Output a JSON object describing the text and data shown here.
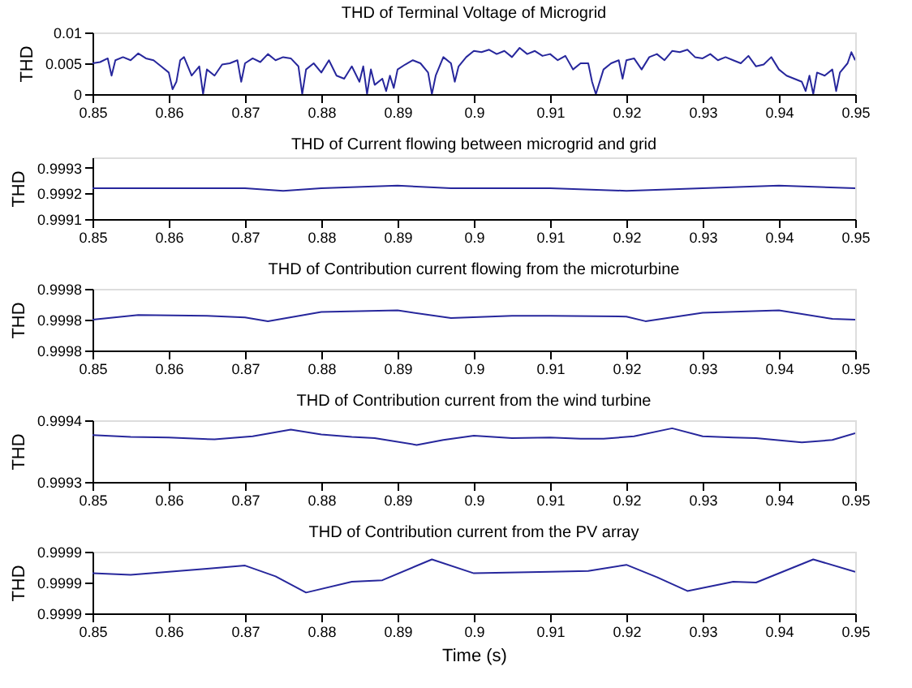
{
  "chart_data": [
    {
      "type": "line",
      "title": "THD of Terminal Voltage of Microgrid",
      "ylabel": "THD",
      "color": "#27279c",
      "xlim": [
        0.85,
        0.95
      ],
      "xticks": [
        0.85,
        0.86,
        0.87,
        0.88,
        0.89,
        0.9,
        0.91,
        0.92,
        0.93,
        0.94,
        0.95
      ],
      "ylim": [
        0,
        0.01
      ],
      "yticks": [
        0,
        0.005,
        0.01
      ],
      "x": [
        0.85,
        0.851,
        0.852,
        0.8525,
        0.853,
        0.854,
        0.855,
        0.856,
        0.857,
        0.858,
        0.859,
        0.86,
        0.8605,
        0.861,
        0.8615,
        0.862,
        0.863,
        0.864,
        0.8645,
        0.865,
        0.866,
        0.867,
        0.868,
        0.869,
        0.8695,
        0.87,
        0.871,
        0.872,
        0.873,
        0.874,
        0.875,
        0.876,
        0.877,
        0.8775,
        0.878,
        0.879,
        0.88,
        0.881,
        0.882,
        0.883,
        0.884,
        0.885,
        0.8855,
        0.886,
        0.8865,
        0.887,
        0.888,
        0.8885,
        0.889,
        0.8895,
        0.89,
        0.891,
        0.892,
        0.893,
        0.894,
        0.8945,
        0.895,
        0.896,
        0.897,
        0.8975,
        0.898,
        0.899,
        0.9,
        0.901,
        0.902,
        0.903,
        0.904,
        0.905,
        0.906,
        0.907,
        0.908,
        0.909,
        0.91,
        0.911,
        0.912,
        0.913,
        0.914,
        0.915,
        0.9155,
        0.916,
        0.917,
        0.918,
        0.919,
        0.9195,
        0.92,
        0.921,
        0.922,
        0.923,
        0.924,
        0.925,
        0.926,
        0.927,
        0.928,
        0.929,
        0.93,
        0.931,
        0.932,
        0.933,
        0.934,
        0.935,
        0.936,
        0.937,
        0.938,
        0.939,
        0.94,
        0.941,
        0.942,
        0.943,
        0.9435,
        0.944,
        0.9445,
        0.945,
        0.946,
        0.947,
        0.9475,
        0.948,
        0.949,
        0.9495,
        0.95
      ],
      "values": [
        0.005,
        0.0052,
        0.0058,
        0.003,
        0.0055,
        0.006,
        0.0055,
        0.0066,
        0.0058,
        0.0055,
        0.0045,
        0.0035,
        0.0008,
        0.002,
        0.0055,
        0.006,
        0.003,
        0.0045,
        0.0,
        0.004,
        0.003,
        0.0048,
        0.005,
        0.0055,
        0.002,
        0.005,
        0.0058,
        0.0052,
        0.0065,
        0.0055,
        0.006,
        0.0058,
        0.0045,
        0.0,
        0.004,
        0.005,
        0.0035,
        0.0055,
        0.003,
        0.0025,
        0.0045,
        0.002,
        0.0045,
        0.0,
        0.004,
        0.0015,
        0.0025,
        0.0005,
        0.003,
        0.001,
        0.004,
        0.0048,
        0.0055,
        0.005,
        0.0035,
        0.0,
        0.003,
        0.006,
        0.005,
        0.002,
        0.0045,
        0.006,
        0.007,
        0.0068,
        0.0072,
        0.0065,
        0.007,
        0.006,
        0.0075,
        0.0065,
        0.007,
        0.0062,
        0.0065,
        0.0055,
        0.0062,
        0.004,
        0.005,
        0.005,
        0.002,
        0.0,
        0.004,
        0.005,
        0.0055,
        0.0025,
        0.0055,
        0.0058,
        0.004,
        0.006,
        0.0065,
        0.0055,
        0.007,
        0.0068,
        0.0072,
        0.006,
        0.0058,
        0.0065,
        0.0055,
        0.006,
        0.0055,
        0.005,
        0.0062,
        0.0045,
        0.0048,
        0.006,
        0.004,
        0.003,
        0.0025,
        0.002,
        0.0005,
        0.003,
        0.0,
        0.0035,
        0.003,
        0.004,
        0.0005,
        0.0035,
        0.005,
        0.0068,
        0.0055
      ]
    },
    {
      "type": "line",
      "title": "THD of Current flowing between microgrid and grid",
      "ylabel": "THD",
      "color": "#27279c",
      "xlim": [
        0.85,
        0.95
      ],
      "xticks": [
        0.85,
        0.86,
        0.87,
        0.88,
        0.89,
        0.9,
        0.91,
        0.92,
        0.93,
        0.94,
        0.95
      ],
      "ylim": [
        0.9991,
        0.99934
      ],
      "yticks": [
        0.9991,
        0.9992,
        0.9993
      ],
      "x": [
        0.85,
        0.86,
        0.87,
        0.875,
        0.88,
        0.89,
        0.897,
        0.905,
        0.91,
        0.92,
        0.93,
        0.94,
        0.95
      ],
      "values": [
        0.99922,
        0.99922,
        0.99922,
        0.99921,
        0.99922,
        0.99923,
        0.99922,
        0.99922,
        0.99922,
        0.99921,
        0.99922,
        0.99923,
        0.99922
      ]
    },
    {
      "type": "line",
      "title": "THD of Contribution current flowing from the microturbine",
      "ylabel": "THD",
      "color": "#27279c",
      "xlim": [
        0.85,
        0.95
      ],
      "xticks": [
        0.85,
        0.86,
        0.87,
        0.88,
        0.89,
        0.9,
        0.91,
        0.92,
        0.93,
        0.94,
        0.95
      ],
      "ylim": [
        0.99976,
        0.99984
      ],
      "yticks": [
        {
          "value": 0.99976,
          "label": "0.9998"
        },
        {
          "value": 0.9998,
          "label": "0.9998"
        },
        {
          "value": 0.99984,
          "label": "0.9998"
        }
      ],
      "x": [
        0.85,
        0.856,
        0.865,
        0.87,
        0.873,
        0.88,
        0.89,
        0.897,
        0.905,
        0.91,
        0.92,
        0.9225,
        0.93,
        0.94,
        0.947,
        0.95
      ],
      "values": [
        0.9998,
        0.999806,
        0.999805,
        0.999803,
        0.999798,
        0.99981,
        0.999812,
        0.999802,
        0.999805,
        0.999805,
        0.999804,
        0.999798,
        0.999809,
        0.999812,
        0.999801,
        0.9998
      ]
    },
    {
      "type": "line",
      "title": "THD of Contribution current from the wind turbine",
      "ylabel": "THD",
      "color": "#27279c",
      "xlim": [
        0.85,
        0.95
      ],
      "xticks": [
        0.85,
        0.86,
        0.87,
        0.88,
        0.89,
        0.9,
        0.91,
        0.92,
        0.93,
        0.94,
        0.95
      ],
      "ylim": [
        0.9993,
        0.9994
      ],
      "yticks": [
        0.9993,
        0.9994
      ],
      "x": [
        0.85,
        0.855,
        0.86,
        0.866,
        0.871,
        0.876,
        0.88,
        0.884,
        0.887,
        0.8925,
        0.896,
        0.9,
        0.905,
        0.91,
        0.914,
        0.917,
        0.921,
        0.926,
        0.93,
        0.934,
        0.937,
        0.943,
        0.947,
        0.95
      ],
      "values": [
        0.999376,
        0.999373,
        0.999372,
        0.999369,
        0.999374,
        0.999385,
        0.999377,
        0.999373,
        0.999371,
        0.99936,
        0.999368,
        0.999375,
        0.999371,
        0.999372,
        0.99937,
        0.99937,
        0.999374,
        0.999387,
        0.999374,
        0.999372,
        0.999371,
        0.999364,
        0.999368,
        0.999379
      ]
    },
    {
      "type": "line",
      "title": "THD of Contribution current from the PV array",
      "ylabel": "THD",
      "xlabel": "Time (s)",
      "color": "#27279c",
      "xlim": [
        0.85,
        0.95
      ],
      "xticks": [
        0.85,
        0.86,
        0.87,
        0.88,
        0.89,
        0.9,
        0.91,
        0.92,
        0.93,
        0.94,
        0.95
      ],
      "ylim": [
        0.99986,
        0.99994
      ],
      "yticks": [
        {
          "value": 0.99986,
          "label": "0.9999"
        },
        {
          "value": 0.9999,
          "label": "0.9999"
        },
        {
          "value": 0.99994,
          "label": "0.9999"
        }
      ],
      "x": [
        0.85,
        0.855,
        0.86,
        0.865,
        0.87,
        0.874,
        0.878,
        0.884,
        0.888,
        0.8945,
        0.9,
        0.91,
        0.915,
        0.92,
        0.924,
        0.928,
        0.934,
        0.937,
        0.9445,
        0.95
      ],
      "values": [
        0.999912,
        0.99991,
        0.999914,
        0.999918,
        0.999922,
        0.999908,
        0.999887,
        0.999901,
        0.999903,
        0.99993,
        0.999912,
        0.999914,
        0.999915,
        0.999923,
        0.999907,
        0.999889,
        0.999901,
        0.9999,
        0.99993,
        0.999914
      ]
    }
  ]
}
